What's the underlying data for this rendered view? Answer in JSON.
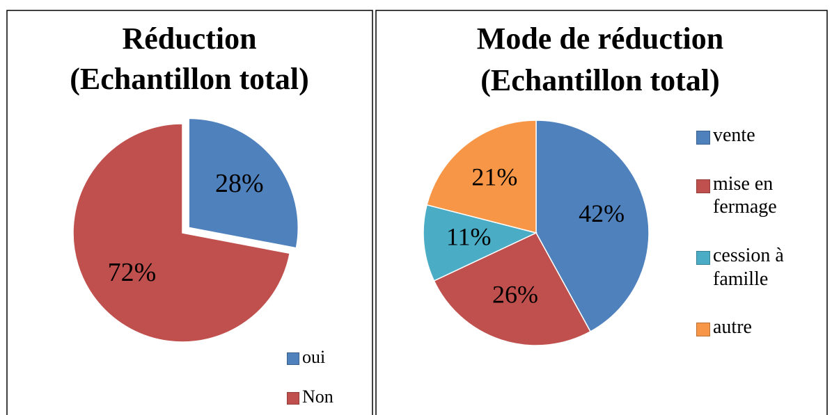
{
  "chart_data": [
    {
      "type": "pie",
      "title": [
        "Réduction",
        "(Echantillon total)"
      ],
      "categories": [
        "oui",
        "Non"
      ],
      "values": [
        28,
        72
      ],
      "value_labels": [
        "28%",
        "72%"
      ],
      "colors": [
        "#4f81bd",
        "#c0504d"
      ],
      "exploded": [
        true,
        false
      ]
    },
    {
      "type": "pie",
      "title": [
        "Mode de réduction",
        "(Echantillon total)"
      ],
      "categories": [
        "vente",
        "mise en fermage",
        "cession à famille",
        "autre"
      ],
      "values": [
        42,
        26,
        11,
        21
      ],
      "value_labels": [
        "42%",
        "26%",
        "11%",
        "21%"
      ],
      "colors": [
        "#4f81bd",
        "#c0504d",
        "#4bacc6",
        "#f79646"
      ],
      "exploded": [
        false,
        false,
        false,
        false
      ]
    }
  ]
}
